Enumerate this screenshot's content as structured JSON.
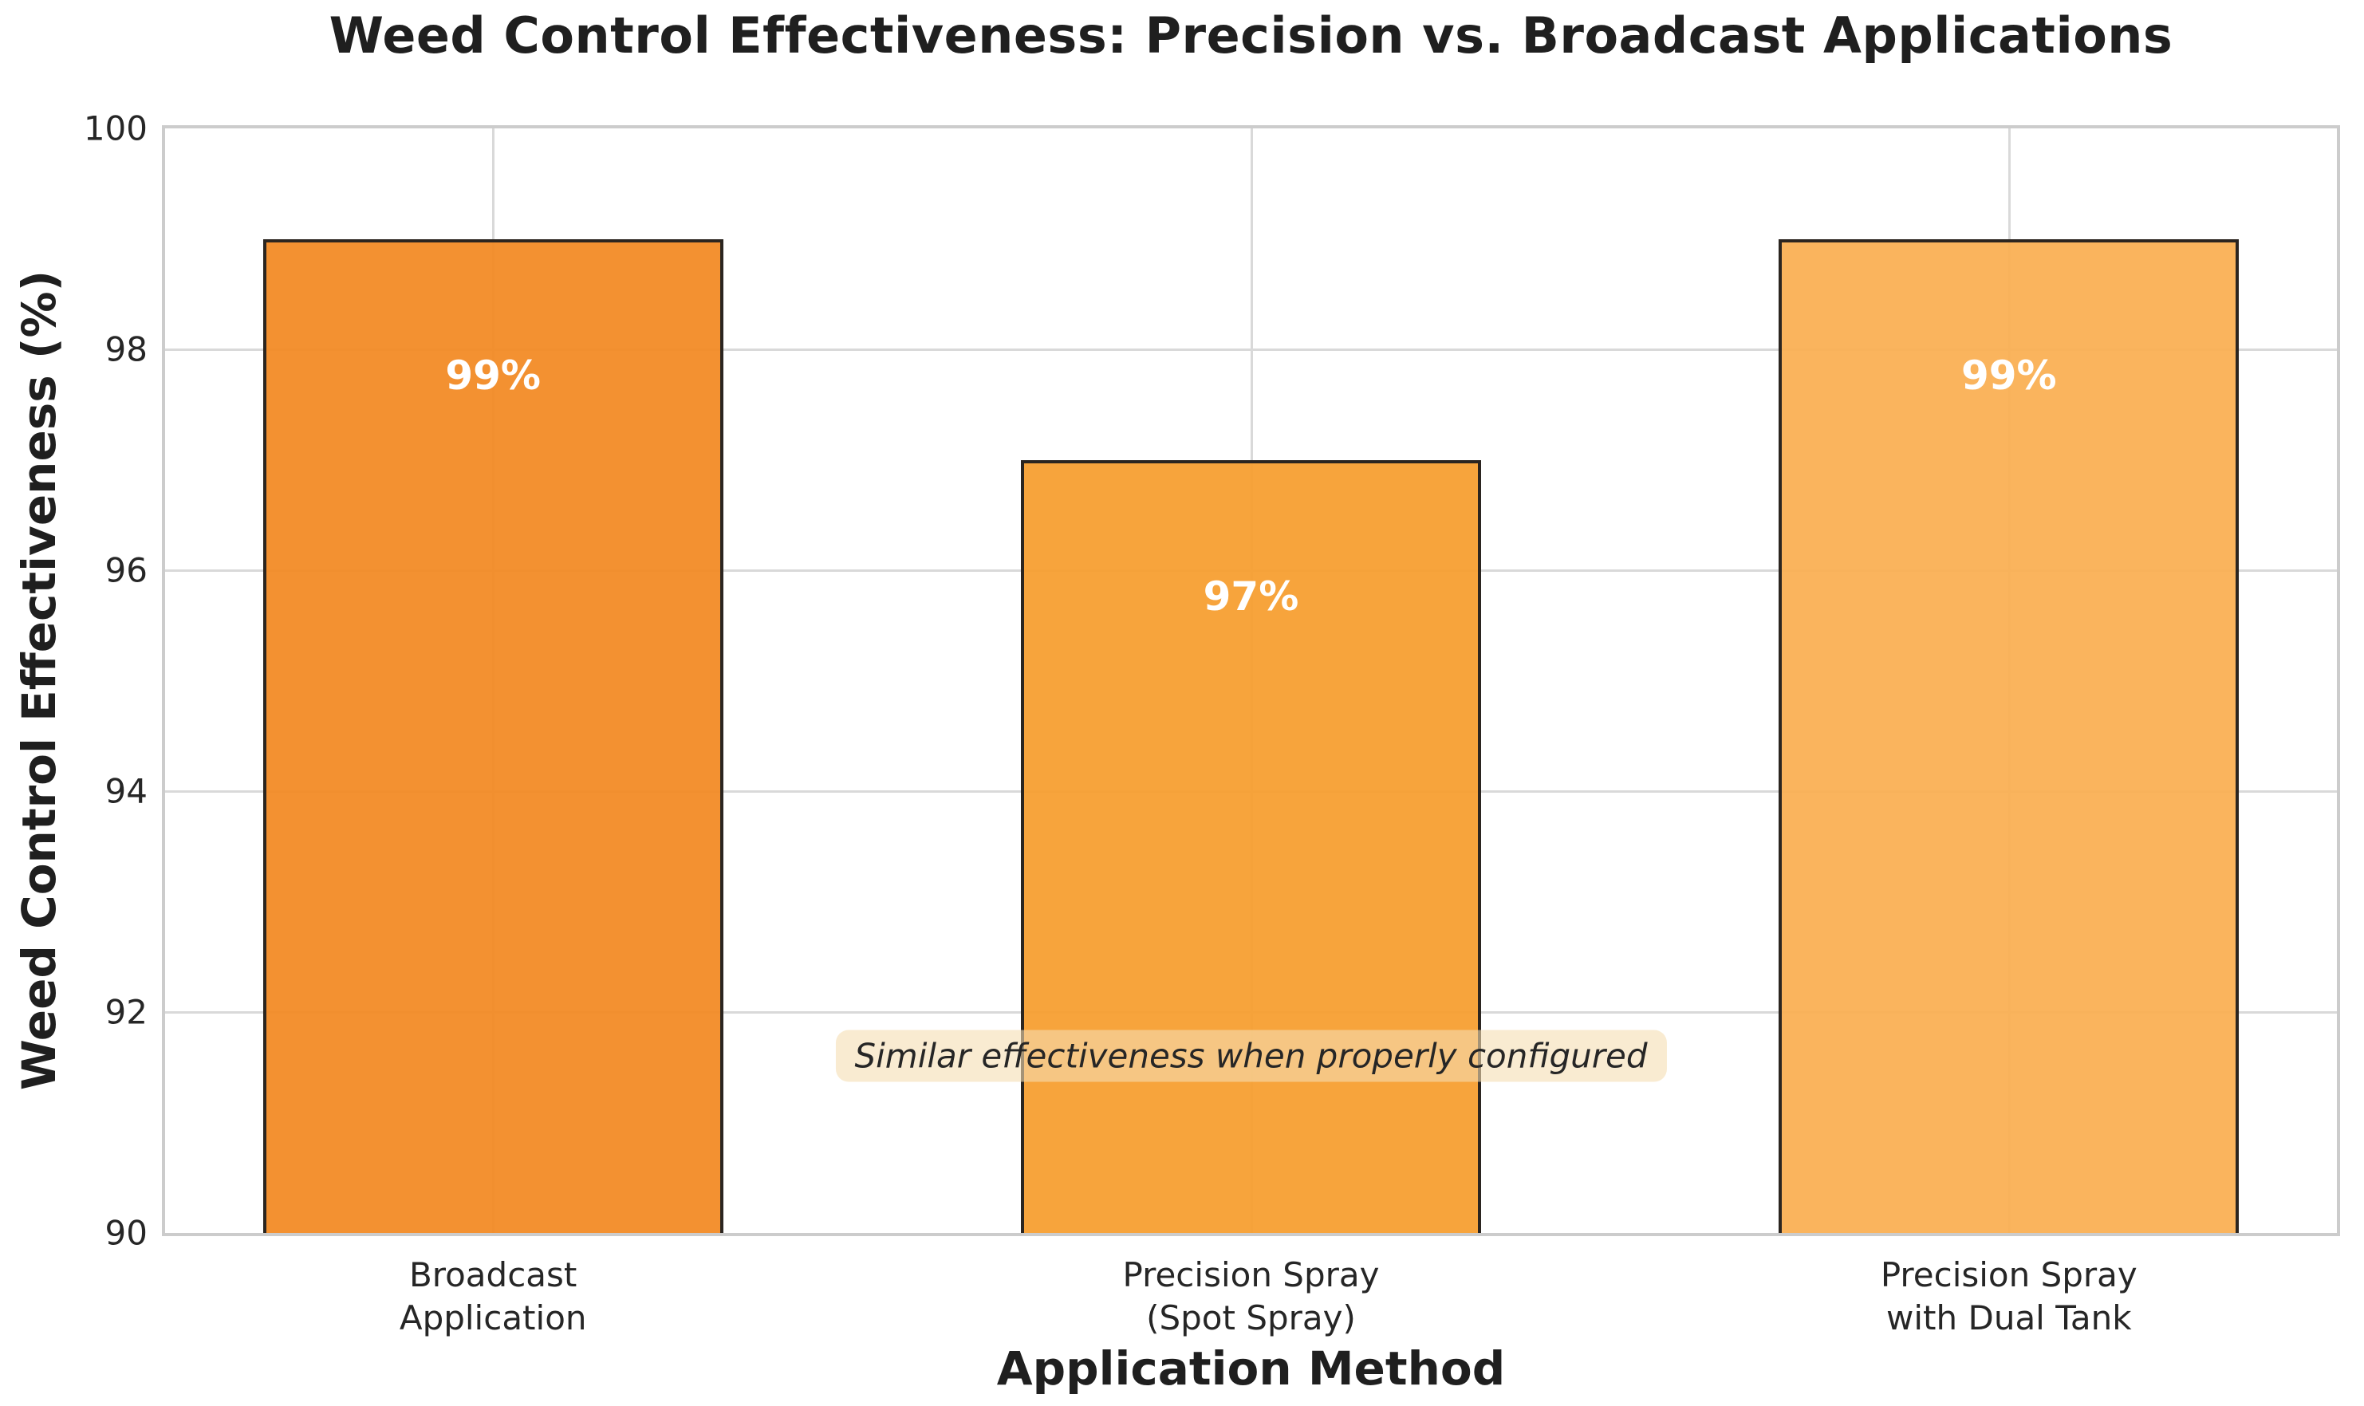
{
  "chart_data": {
    "type": "bar",
    "title": "Weed Control Effectiveness: Precision vs. Broadcast Applications",
    "xlabel": "Application Method",
    "ylabel": "Weed Control Effectiveness (%)",
    "ylim": [
      90,
      100
    ],
    "yticks": [
      90,
      92,
      94,
      96,
      98,
      100
    ],
    "grid": {
      "visible": true,
      "h_lines": [
        92,
        94,
        96,
        98
      ],
      "color": "#d9d9d9"
    },
    "legend": {
      "visible": false
    },
    "categories": [
      "Broadcast\nApplication",
      "Precision Spray\n(Spot Spray)",
      "Precision Spray\nwith Dual Tank"
    ],
    "values": [
      99,
      97,
      99
    ],
    "value_labels": [
      "99%",
      "97%",
      "99%"
    ],
    "bar_centers_pct": [
      15.1,
      50,
      84.9
    ],
    "bar_width_pct": 21.2,
    "bar_fill_colors": [
      "rgba(242,137,33,0.93)",
      "rgba(246,157,45,0.93)",
      "rgba(250,174,81,0.93)"
    ],
    "bar_edge_color": "#2b2520",
    "annotation": {
      "text": "Similar effectiveness when properly configured",
      "bg_color": "rgba(245,222,179,0.6)",
      "x_pct": 50,
      "y_value": 91.6
    },
    "colors": {
      "text": "#1f1f1f",
      "tick_text": "#262626",
      "spine": "#cccccc",
      "value_label": "#ffffff"
    }
  }
}
